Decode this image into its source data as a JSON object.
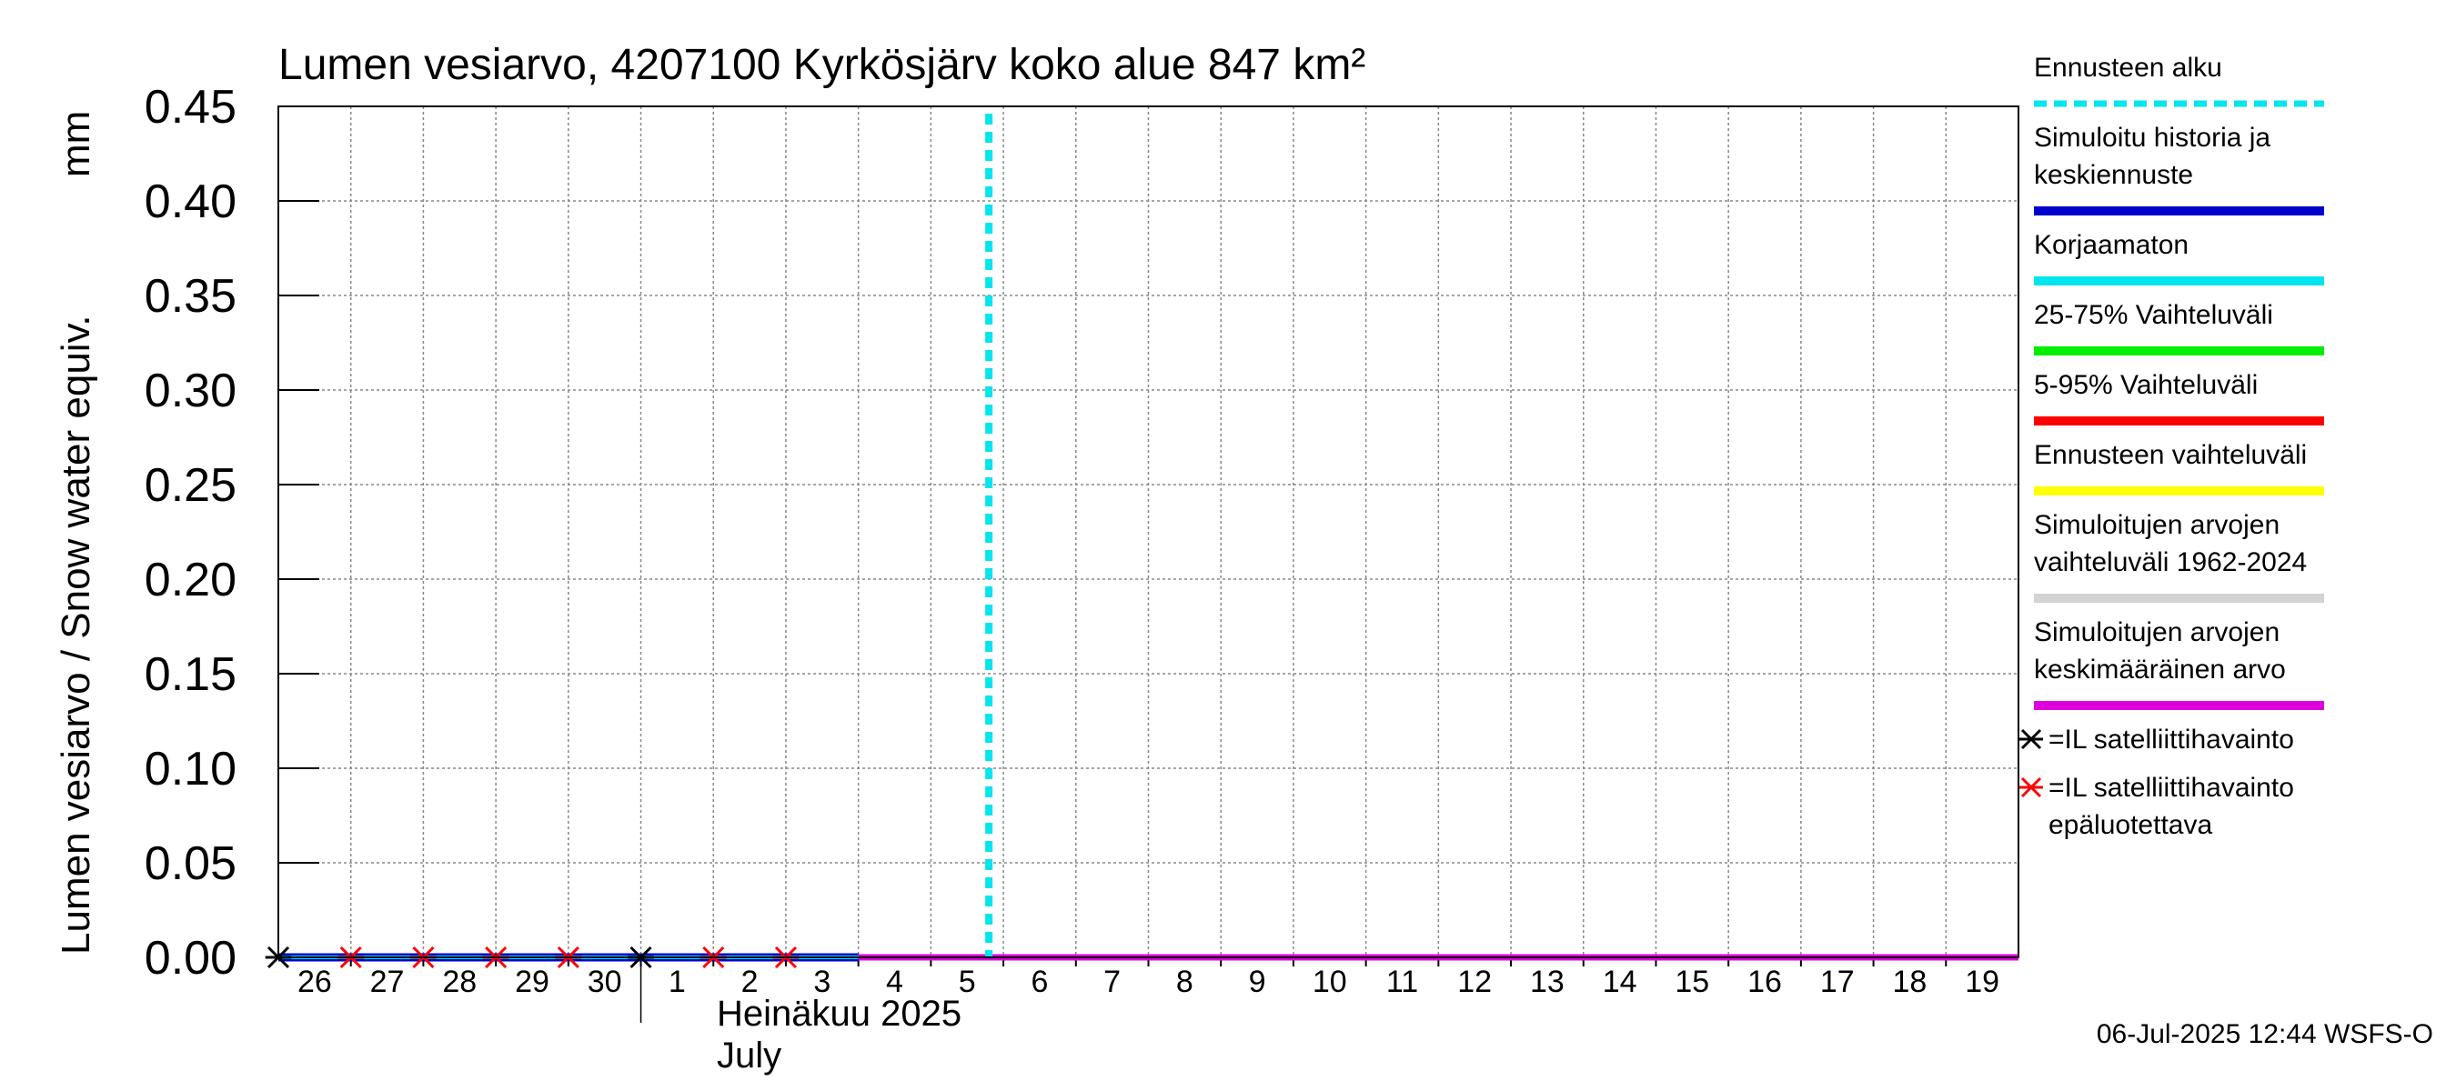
{
  "chart_data": {
    "type": "line",
    "title": "Lumen vesiarvo, 4207100 Kyrkösjärv koko alue 847 km²",
    "ylabel": "Lumen vesiarvo / Snow water equiv.",
    "yunit": "mm",
    "ylim": [
      0,
      0.45
    ],
    "yticks": [
      "0.00",
      "0.05",
      "0.10",
      "0.15",
      "0.20",
      "0.25",
      "0.30",
      "0.35",
      "0.40",
      "0.45"
    ],
    "x_range": [
      "2025-06-26",
      "2025-07-20"
    ],
    "xtick_labels": [
      "26",
      "27",
      "28",
      "29",
      "30",
      "1",
      "2",
      "3",
      "4",
      "5",
      "6",
      "7",
      "8",
      "9",
      "10",
      "11",
      "12",
      "13",
      "14",
      "15",
      "16",
      "17",
      "18",
      "19"
    ],
    "month_label": "Heinäkuu  2025",
    "month_label_en": "July",
    "grid": true,
    "legend_position": "right",
    "forecast_start": "2025-07-06",
    "series": [
      {
        "name": "Simuloitu historia ja keskiennuste",
        "color": "#0000cc",
        "x": [
          "2025-06-26",
          "2025-07-04"
        ],
        "y": [
          0,
          0
        ]
      },
      {
        "name": "Korjaamaton",
        "color": "#00e5ee",
        "x": [
          "2025-06-26",
          "2025-07-04"
        ],
        "y": [
          0,
          0
        ]
      },
      {
        "name": "Simuloitujen arvojen keskimääräinen arvo",
        "color": "#dd00dd",
        "x": [
          "2025-07-04",
          "2025-07-20"
        ],
        "y": [
          0,
          0
        ]
      }
    ],
    "observations": [
      {
        "name": "=IL satelliittihavainto",
        "color": "#000000",
        "dates": [
          "2025-06-26",
          "2025-07-01"
        ],
        "values": [
          0,
          0
        ]
      },
      {
        "name": "=IL satelliittihavainto epäluotettava",
        "color": "#ff0000",
        "dates": [
          "2025-06-27",
          "2025-06-28",
          "2025-06-29",
          "2025-06-30",
          "2025-07-02",
          "2025-07-03"
        ],
        "values": [
          0,
          0,
          0,
          0,
          0,
          0
        ]
      }
    ],
    "legend": [
      {
        "label_lines": [
          "Ennusteen alku"
        ],
        "color": "#00e5ee",
        "style": "dotted"
      },
      {
        "label_lines": [
          "Simuloitu historia ja",
          "keskiennuste"
        ],
        "color": "#0000cc",
        "style": "solid"
      },
      {
        "label_lines": [
          "Korjaamaton"
        ],
        "color": "#00e5ee",
        "style": "solid"
      },
      {
        "label_lines": [
          "25-75% Vaihteluväli"
        ],
        "color": "#00ee00",
        "style": "solid"
      },
      {
        "label_lines": [
          "5-95% Vaihteluväli"
        ],
        "color": "#ff0000",
        "style": "solid"
      },
      {
        "label_lines": [
          "Ennusteen vaihteluväli"
        ],
        "color": "#ffff00",
        "style": "solid"
      },
      {
        "label_lines": [
          "Simuloitujen arvojen",
          "vaihteluväli 1962-2024"
        ],
        "color": "#d3d3d3",
        "style": "solid"
      },
      {
        "label_lines": [
          "Simuloitujen arvojen",
          "keskimääräinen arvo"
        ],
        "color": "#dd00dd",
        "style": "solid"
      },
      {
        "label_lines": [
          "=IL satelliittihavainto"
        ],
        "color": "#000000",
        "style": "marker"
      },
      {
        "label_lines": [
          "=IL satelliittihavainto",
          "epäluotettava"
        ],
        "color": "#ff0000",
        "style": "marker"
      }
    ]
  },
  "footer": {
    "timestamp": "06-Jul-2025 12:44 WSFS-O"
  }
}
